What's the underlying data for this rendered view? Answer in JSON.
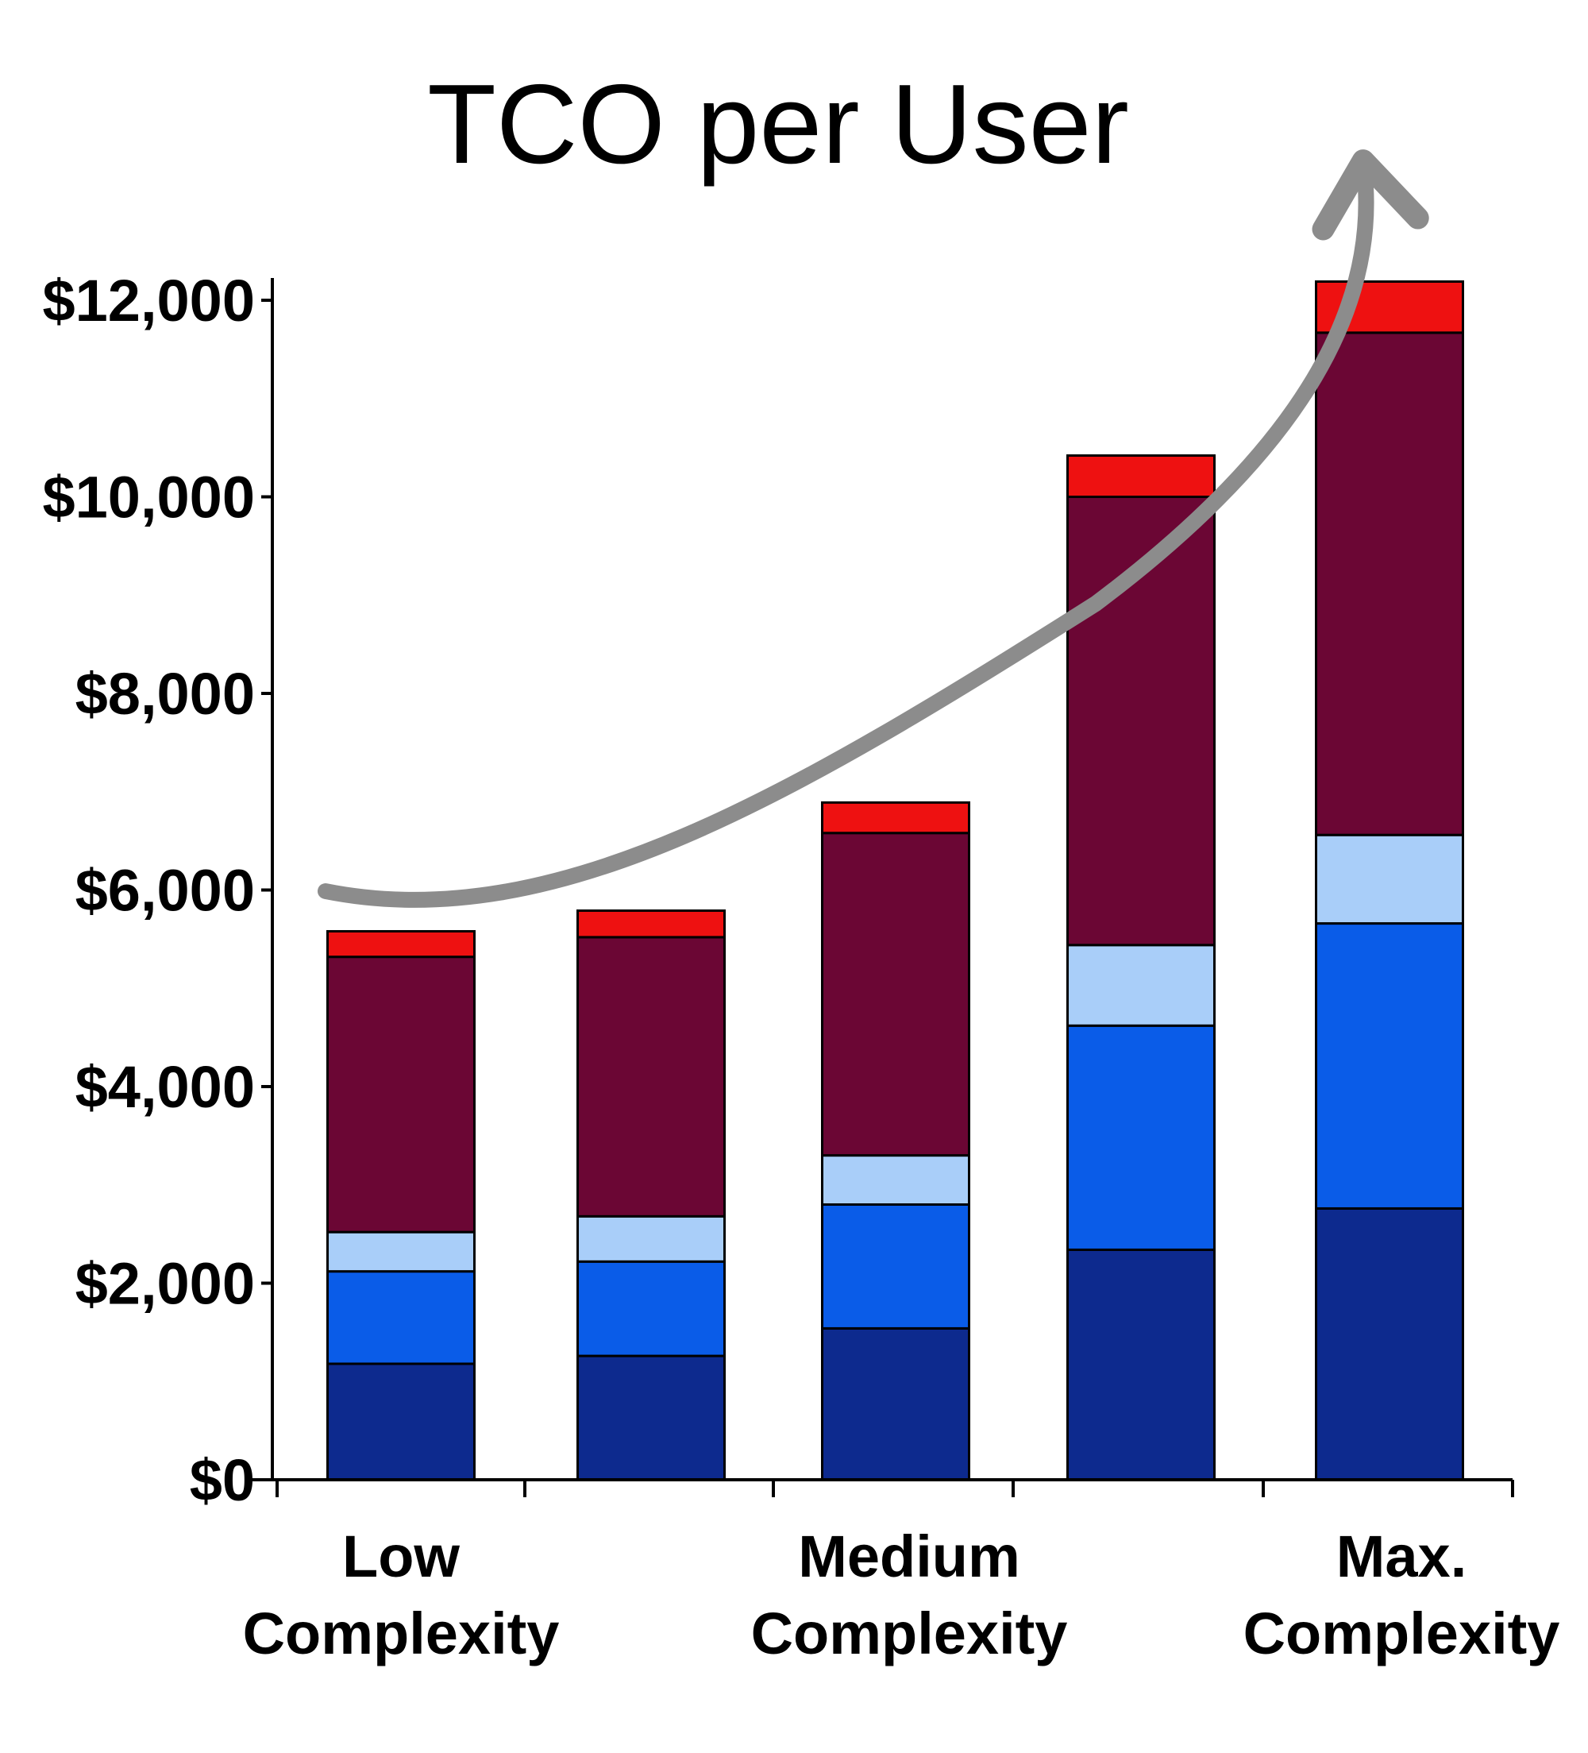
{
  "chart_data": {
    "type": "bar",
    "stacked": true,
    "title": "TCO per User",
    "xlabel": "",
    "ylabel": "",
    "ylim": [
      0,
      12000
    ],
    "y_ticks": [
      "$0",
      "$2,000",
      "$4,000",
      "$6,000",
      "$8,000",
      "$10,000",
      "$12,000"
    ],
    "y_tick_values": [
      0,
      2000,
      4000,
      6000,
      8000,
      10000,
      12000
    ],
    "categories": [
      "",
      "",
      "",
      "",
      ""
    ],
    "x_group_labels": [
      {
        "line1": "Low",
        "line2": "Complexity"
      },
      {
        "line1": "Medium",
        "line2": "Complexity"
      },
      {
        "line1": "Max.",
        "line2": "Complexity"
      }
    ],
    "legend": "none",
    "grid": false,
    "series": [
      {
        "color": "#0d2a8e",
        "values": [
          1180,
          1260,
          1540,
          2340,
          2760
        ]
      },
      {
        "color": "#0a5ce8",
        "values": [
          940,
          960,
          1260,
          2280,
          2900
        ]
      },
      {
        "color": "#a9cef9",
        "values": [
          400,
          460,
          500,
          820,
          900
        ]
      },
      {
        "color": "#6b0634",
        "values": [
          2800,
          2840,
          3280,
          4560,
          5110
        ]
      },
      {
        "color": "#ee1111",
        "values": [
          260,
          270,
          310,
          420,
          520
        ]
      }
    ],
    "annotation": {
      "type": "curved-arrow",
      "color": "#8c8c8c",
      "direction": "up"
    }
  }
}
